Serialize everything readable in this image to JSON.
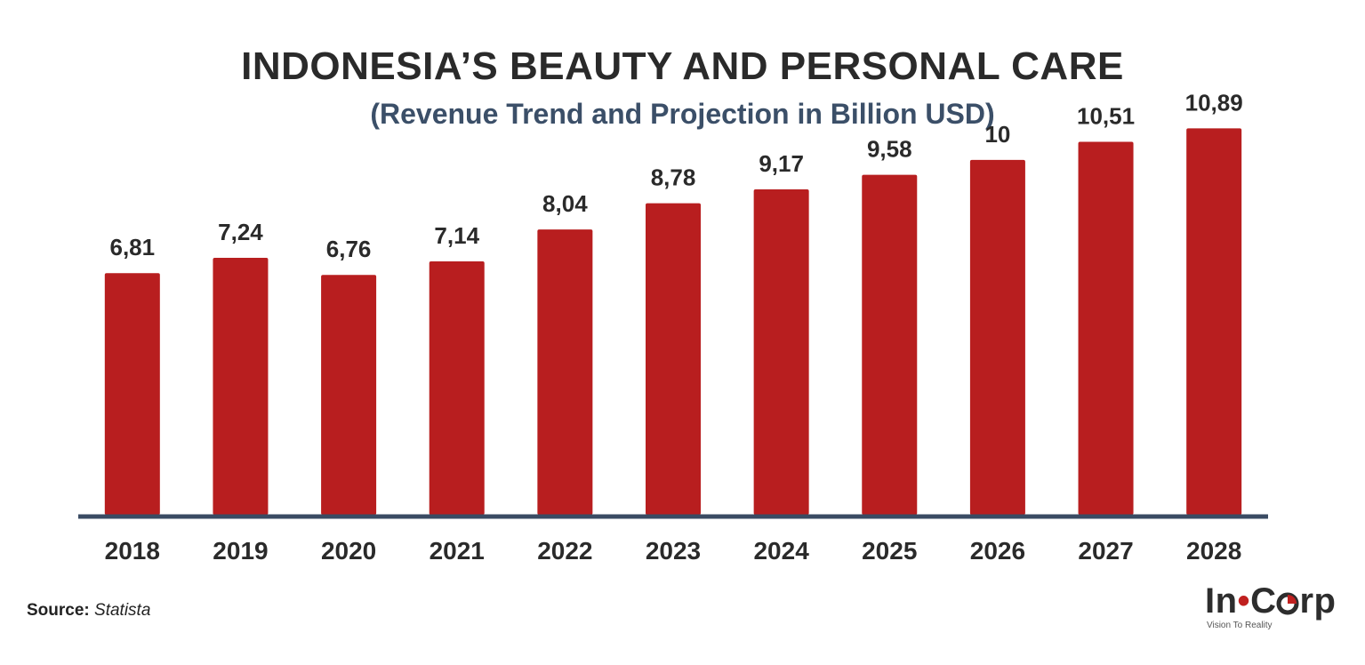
{
  "chart_data": {
    "type": "bar",
    "title": "INDONESIA’S BEAUTY AND PERSONAL CARE",
    "subtitle": "(Revenue Trend and Projection in Billion USD)",
    "categories": [
      "2018",
      "2019",
      "2020",
      "2021",
      "2022",
      "2023",
      "2024",
      "2025",
      "2026",
      "2027",
      "2028"
    ],
    "values": [
      6.81,
      7.24,
      6.76,
      7.14,
      8.04,
      8.78,
      9.17,
      9.58,
      10,
      10.51,
      10.89
    ],
    "value_labels": [
      "6,81",
      "7,24",
      "6,76",
      "7,14",
      "8,04",
      "8,78",
      "9,17",
      "9,58",
      "10",
      "10,51",
      "10,89"
    ],
    "ylim": [
      0,
      11
    ],
    "bar_color": "#b81e1f",
    "baseline_color": "#3a4b63",
    "grid": false,
    "legend": "none"
  },
  "source": {
    "label": "Source:",
    "value": "Statista"
  },
  "logo": {
    "main_left": "In",
    "main_right": "rp",
    "main_c": "C",
    "tagline": "Vision To Reality",
    "accent": "#c0201f"
  }
}
